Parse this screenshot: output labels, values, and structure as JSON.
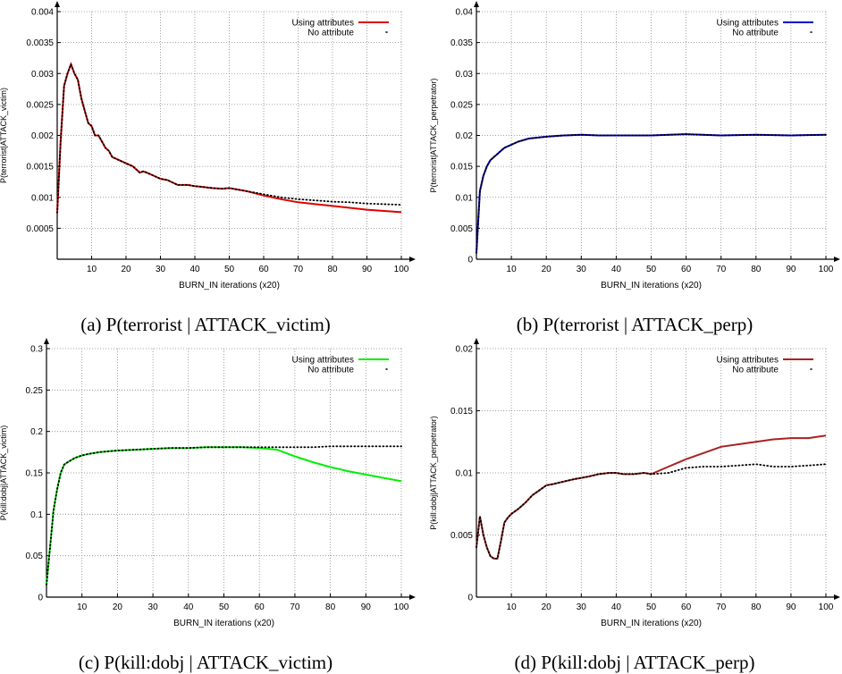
{
  "captions": [
    "(a) P(terrorist | ATTACK_victim)",
    "(b) P(terrorist | ATTACK_perp)",
    "(c) P(kill:dobj | ATTACK_victim)",
    "(d) P(kill:dobj | ATTACK_perp)"
  ],
  "chart_data": [
    {
      "type": "line",
      "xlabel": "BURN_IN iterations (x20)",
      "ylabel": "P(terrorist|ATTACK_victim)",
      "xlim": [
        0,
        100
      ],
      "ylim": [
        0,
        0.004
      ],
      "xticks": [
        10,
        20,
        30,
        40,
        50,
        60,
        70,
        80,
        90,
        100
      ],
      "xtick_labels": [
        "10",
        "20",
        "30",
        "40",
        "50",
        "60",
        "70",
        "80",
        "90",
        "100"
      ],
      "yticks": [
        0.0005,
        0.001,
        0.0015,
        0.002,
        0.0025,
        0.003,
        0.0035,
        0.004
      ],
      "ytick_labels": [
        "0.0005",
        "0.001",
        "0.0015",
        "0.002",
        "0.0025",
        "0.003",
        "0.0035",
        "0.004"
      ],
      "grid": true,
      "legend_position": "top-right",
      "series": [
        {
          "name": "Using attributes",
          "color": "#dd0000",
          "style": "solid",
          "x": [
            0,
            1,
            2,
            3,
            4,
            5,
            6,
            7,
            8,
            9,
            10,
            11,
            12,
            13,
            14,
            15,
            16,
            18,
            20,
            22,
            24,
            25,
            26,
            28,
            30,
            32,
            35,
            38,
            40,
            42,
            45,
            48,
            50,
            55,
            60,
            65,
            70,
            75,
            80,
            85,
            90,
            95,
            100
          ],
          "y": [
            0.00075,
            0.0019,
            0.0028,
            0.003,
            0.00315,
            0.003,
            0.0029,
            0.0026,
            0.0024,
            0.0022,
            0.00215,
            0.002,
            0.002,
            0.0019,
            0.0018,
            0.00175,
            0.00165,
            0.0016,
            0.00155,
            0.0015,
            0.0014,
            0.00142,
            0.0014,
            0.00135,
            0.0013,
            0.00128,
            0.0012,
            0.0012,
            0.00118,
            0.00117,
            0.00115,
            0.00114,
            0.00115,
            0.0011,
            0.00103,
            0.00097,
            0.00092,
            0.00089,
            0.00086,
            0.00083,
            0.0008,
            0.00078,
            0.00076
          ]
        },
        {
          "name": "No attribute",
          "color": "#000000",
          "style": "dotted",
          "x": [
            0,
            1,
            2,
            3,
            4,
            5,
            6,
            7,
            8,
            9,
            10,
            11,
            12,
            13,
            14,
            15,
            16,
            18,
            20,
            22,
            24,
            25,
            26,
            28,
            30,
            32,
            35,
            38,
            40,
            42,
            45,
            48,
            50,
            55,
            60,
            65,
            70,
            75,
            80,
            85,
            90,
            95,
            100
          ],
          "y": [
            0.00075,
            0.0019,
            0.0028,
            0.003,
            0.00315,
            0.003,
            0.0029,
            0.0026,
            0.0024,
            0.0022,
            0.00215,
            0.002,
            0.002,
            0.0019,
            0.0018,
            0.00175,
            0.00165,
            0.0016,
            0.00155,
            0.0015,
            0.0014,
            0.00142,
            0.0014,
            0.00135,
            0.0013,
            0.00128,
            0.0012,
            0.0012,
            0.00118,
            0.00117,
            0.00115,
            0.00114,
            0.00115,
            0.0011,
            0.00105,
            0.001,
            0.00097,
            0.00095,
            0.00093,
            0.00092,
            0.0009,
            0.00089,
            0.00088
          ]
        }
      ]
    },
    {
      "type": "line",
      "xlabel": "BURN_IN iterations (x20)",
      "ylabel": "P(terrorist|ATTACK_perpetrator)",
      "xlim": [
        0,
        100
      ],
      "ylim": [
        0,
        0.04
      ],
      "xticks": [
        10,
        20,
        30,
        40,
        50,
        60,
        70,
        80,
        90,
        100
      ],
      "xtick_labels": [
        "10",
        "20",
        "30",
        "40",
        "50",
        "60",
        "70",
        "80",
        "90",
        "100"
      ],
      "yticks": [
        0,
        0.005,
        0.01,
        0.015,
        0.02,
        0.025,
        0.03,
        0.035,
        0.04
      ],
      "ytick_labels": [
        "0",
        "0.005",
        "0.01",
        "0.015",
        "0.02",
        "0.025",
        "0.03",
        "0.035",
        "0.04"
      ],
      "grid": true,
      "legend_position": "top-right",
      "series": [
        {
          "name": "Using attributes",
          "color": "#0000cc",
          "style": "solid",
          "x": [
            0,
            1,
            2,
            3,
            4,
            5,
            6,
            7,
            8,
            10,
            12,
            15,
            20,
            25,
            30,
            35,
            40,
            50,
            60,
            70,
            80,
            90,
            100
          ],
          "y": [
            0.001,
            0.011,
            0.0135,
            0.015,
            0.016,
            0.0165,
            0.017,
            0.0175,
            0.018,
            0.0185,
            0.019,
            0.0195,
            0.0198,
            0.02,
            0.0201,
            0.02,
            0.02,
            0.02,
            0.0202,
            0.02,
            0.0201,
            0.02,
            0.0201
          ]
        },
        {
          "name": "No attribute",
          "color": "#000000",
          "style": "dotted",
          "x": [
            0,
            1,
            2,
            3,
            4,
            5,
            6,
            7,
            8,
            10,
            12,
            15,
            20,
            25,
            30,
            35,
            40,
            50,
            60,
            70,
            80,
            90,
            100
          ],
          "y": [
            0.001,
            0.011,
            0.0135,
            0.015,
            0.016,
            0.0165,
            0.017,
            0.0175,
            0.018,
            0.0185,
            0.019,
            0.0195,
            0.0198,
            0.02,
            0.0201,
            0.02,
            0.02,
            0.02,
            0.0202,
            0.02,
            0.0201,
            0.02,
            0.0201
          ]
        }
      ]
    },
    {
      "type": "line",
      "xlabel": "BURN_IN iterations (x20)",
      "ylabel": "P(kill:dobj|ATTACK_victim)",
      "xlim": [
        0,
        100
      ],
      "ylim": [
        0,
        0.3
      ],
      "xticks": [
        10,
        20,
        30,
        40,
        50,
        60,
        70,
        80,
        90,
        100
      ],
      "xtick_labels": [
        "10",
        "20",
        "30",
        "40",
        "50",
        "60",
        "70",
        "80",
        "90",
        "100"
      ],
      "yticks": [
        0,
        0.05,
        0.1,
        0.15,
        0.2,
        0.25,
        0.3
      ],
      "ytick_labels": [
        "0",
        "0.05",
        "0.1",
        "0.15",
        "0.2",
        "0.25",
        "0.3"
      ],
      "grid": true,
      "legend_position": "top-right",
      "series": [
        {
          "name": "Using attributes",
          "color": "#00ee00",
          "style": "solid",
          "x": [
            0,
            1,
            2,
            3,
            4,
            5,
            6,
            8,
            10,
            12,
            15,
            20,
            25,
            30,
            35,
            40,
            45,
            50,
            55,
            60,
            65,
            70,
            75,
            80,
            85,
            90,
            95,
            100
          ],
          "y": [
            0.015,
            0.06,
            0.105,
            0.13,
            0.15,
            0.16,
            0.163,
            0.168,
            0.171,
            0.173,
            0.175,
            0.177,
            0.178,
            0.179,
            0.18,
            0.18,
            0.181,
            0.181,
            0.181,
            0.18,
            0.178,
            0.17,
            0.163,
            0.157,
            0.152,
            0.148,
            0.144,
            0.14
          ]
        },
        {
          "name": "No attribute",
          "color": "#000000",
          "style": "dotted",
          "x": [
            0,
            1,
            2,
            3,
            4,
            5,
            6,
            8,
            10,
            12,
            15,
            20,
            25,
            30,
            35,
            40,
            45,
            50,
            55,
            60,
            65,
            70,
            75,
            80,
            85,
            90,
            95,
            100
          ],
          "y": [
            0.015,
            0.06,
            0.105,
            0.13,
            0.15,
            0.16,
            0.163,
            0.168,
            0.171,
            0.173,
            0.175,
            0.177,
            0.178,
            0.179,
            0.18,
            0.18,
            0.181,
            0.181,
            0.181,
            0.181,
            0.181,
            0.181,
            0.181,
            0.182,
            0.182,
            0.182,
            0.182,
            0.182
          ]
        }
      ]
    },
    {
      "type": "line",
      "xlabel": "BURN_IN iterations (x20)",
      "ylabel": "P(kill:dobj|ATTACK_perpetrator)",
      "xlim": [
        0,
        100
      ],
      "ylim": [
        0,
        0.02
      ],
      "xticks": [
        10,
        20,
        30,
        40,
        50,
        60,
        70,
        80,
        90,
        100
      ],
      "xtick_labels": [
        "10",
        "20",
        "30",
        "40",
        "50",
        "60",
        "70",
        "80",
        "90",
        "100"
      ],
      "yticks": [
        0,
        0.005,
        0.01,
        0.015,
        0.02
      ],
      "ytick_labels": [
        "0",
        "0.005",
        "0.01",
        "0.015",
        "0.02"
      ],
      "grid": true,
      "legend_position": "top-right",
      "series": [
        {
          "name": "Using attributes",
          "color": "#aa2222",
          "style": "solid",
          "x": [
            0,
            1,
            2,
            3,
            4,
            5,
            6,
            7,
            8,
            9,
            10,
            12,
            14,
            16,
            18,
            20,
            22,
            25,
            28,
            30,
            32,
            35,
            38,
            40,
            42,
            45,
            48,
            50,
            55,
            60,
            65,
            70,
            75,
            80,
            85,
            90,
            95,
            100
          ],
          "y": [
            0.004,
            0.0065,
            0.005,
            0.004,
            0.0033,
            0.0031,
            0.0031,
            0.0045,
            0.006,
            0.0064,
            0.0067,
            0.0071,
            0.0076,
            0.0082,
            0.0086,
            0.009,
            0.0091,
            0.0093,
            0.0095,
            0.0096,
            0.0097,
            0.0099,
            0.01,
            0.01,
            0.0099,
            0.0099,
            0.01,
            0.0099,
            0.0105,
            0.0111,
            0.0116,
            0.0121,
            0.0123,
            0.0125,
            0.0127,
            0.0128,
            0.0128,
            0.013
          ]
        },
        {
          "name": "No attribute",
          "color": "#000000",
          "style": "dotted",
          "x": [
            0,
            1,
            2,
            3,
            4,
            5,
            6,
            7,
            8,
            9,
            10,
            12,
            14,
            16,
            18,
            20,
            22,
            25,
            28,
            30,
            32,
            35,
            38,
            40,
            42,
            45,
            48,
            50,
            55,
            60,
            65,
            70,
            75,
            80,
            85,
            90,
            95,
            100
          ],
          "y": [
            0.004,
            0.0065,
            0.005,
            0.004,
            0.0033,
            0.0031,
            0.0031,
            0.0045,
            0.006,
            0.0064,
            0.0067,
            0.0071,
            0.0076,
            0.0082,
            0.0086,
            0.009,
            0.0091,
            0.0093,
            0.0095,
            0.0096,
            0.0097,
            0.0099,
            0.01,
            0.01,
            0.0099,
            0.0099,
            0.01,
            0.0099,
            0.01,
            0.0104,
            0.0105,
            0.0105,
            0.0106,
            0.0107,
            0.0105,
            0.0105,
            0.0106,
            0.0107
          ]
        }
      ]
    }
  ]
}
